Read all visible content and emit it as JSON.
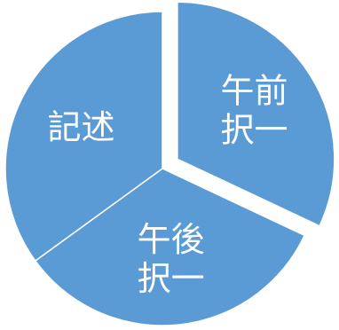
{
  "chart_data": {
    "type": "pie",
    "exploded": "午前択一",
    "slices": [
      {
        "label": "午前択一",
        "lines": [
          "午前",
          "択一"
        ],
        "value": 32
      },
      {
        "label": "午後択一",
        "lines": [
          "午後",
          "択一"
        ],
        "value": 33
      },
      {
        "label": "記述",
        "lines": [
          "記述"
        ],
        "value": 35
      }
    ],
    "colors": {
      "slice_fill": "#5B9BD5",
      "slice_stroke": "#ffffff",
      "label": "#ffffff"
    }
  }
}
